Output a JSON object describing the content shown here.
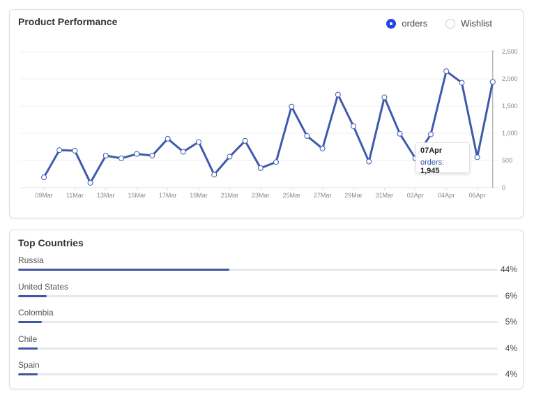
{
  "colors": {
    "accent": "#2744e6",
    "line": "#3f5aac",
    "bar": "#3f55a5",
    "track": "#e6e8ee"
  },
  "performance": {
    "title": "Product Performance",
    "legend": [
      {
        "label": "orders",
        "selected": true
      },
      {
        "label": "Wishlist",
        "selected": false
      }
    ],
    "tooltip": {
      "date": "07Apr",
      "series": "orders:",
      "value": "1,945"
    }
  },
  "chart_data": {
    "type": "line",
    "x": [
      "09Mar",
      "10Mar",
      "11Mar",
      "12Mar",
      "13Mar",
      "14Mar",
      "15Mar",
      "16Mar",
      "17Mar",
      "18Mar",
      "19Mar",
      "20Mar",
      "21Mar",
      "22Mar",
      "23Mar",
      "24Mar",
      "25Mar",
      "26Mar",
      "27Mar",
      "28Mar",
      "29Mar",
      "30Mar",
      "31Mar",
      "01Apr",
      "02Apr",
      "03Apr",
      "04Apr",
      "05Apr",
      "06Apr",
      "07Apr"
    ],
    "x_tick_labels": [
      "09Mar",
      "11Mar",
      "13Mar",
      "15Mar",
      "17Mar",
      "19Mar",
      "21Mar",
      "23Mar",
      "25Mar",
      "27Mar",
      "29Mar",
      "31Mar",
      "02Apr",
      "04Apr",
      "06Apr"
    ],
    "series": [
      {
        "name": "orders",
        "values": [
          190,
          690,
          680,
          90,
          590,
          540,
          620,
          590,
          900,
          660,
          840,
          240,
          570,
          860,
          360,
          470,
          1490,
          950,
          720,
          1710,
          1130,
          480,
          1660,
          990,
          540,
          980,
          2140,
          1930,
          560,
          1945
        ]
      }
    ],
    "ylim": [
      0,
      2500
    ],
    "y_ticks": [
      0,
      500,
      1000,
      1500,
      2000,
      2500
    ],
    "y_tick_labels": [
      "0",
      "500",
      "1,000",
      "1,500",
      "2,000",
      "2,500"
    ],
    "y_axis_side": "right",
    "grid": true
  },
  "countries": {
    "title": "Top Countries",
    "items": [
      {
        "name": "Russia",
        "pct": 44,
        "label": "44%"
      },
      {
        "name": "United States",
        "pct": 6,
        "label": "6%"
      },
      {
        "name": "Colombia",
        "pct": 5,
        "label": "5%"
      },
      {
        "name": "Chile",
        "pct": 4,
        "label": "4%"
      },
      {
        "name": "Spain",
        "pct": 4,
        "label": "4%"
      }
    ]
  }
}
